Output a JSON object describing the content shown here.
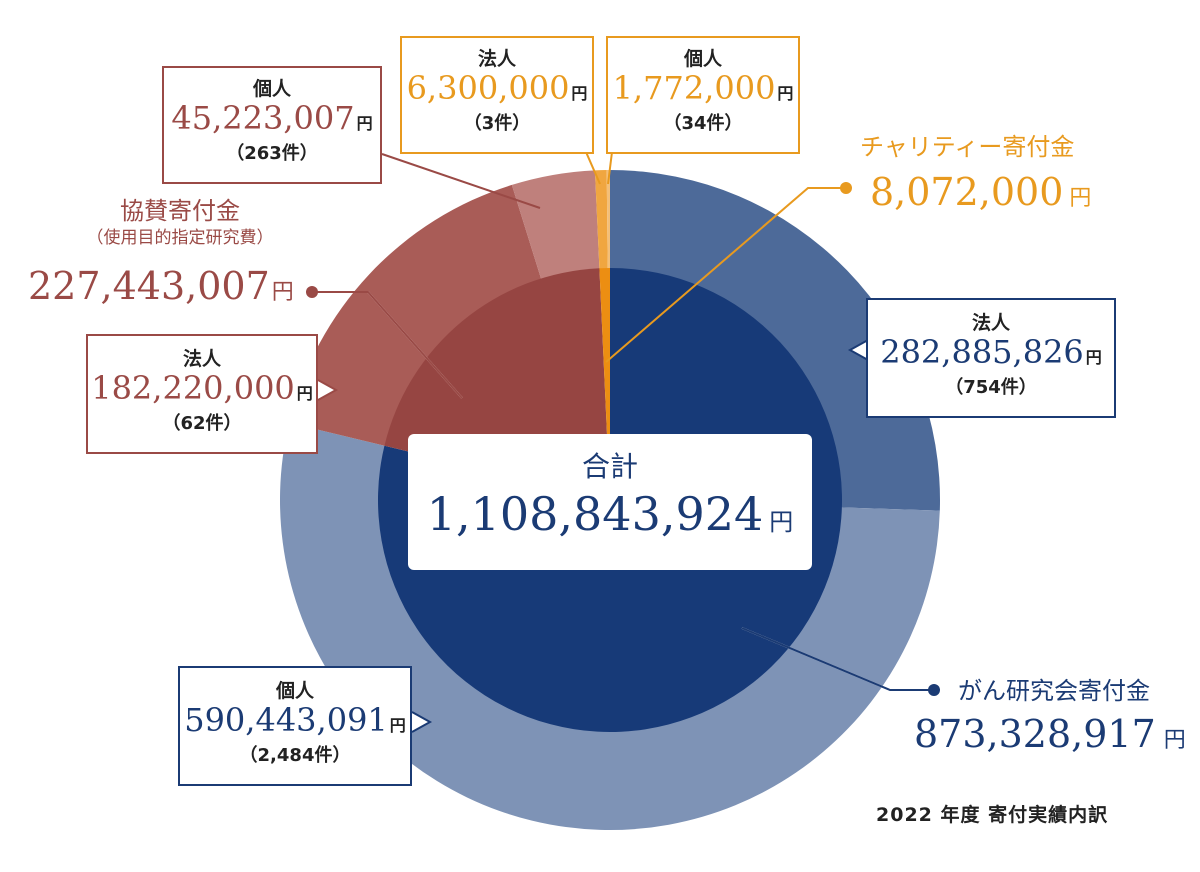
{
  "chart_data": {
    "type": "pie",
    "caption": "2022 年度 寄付実績内訳",
    "total": {
      "label": "合計",
      "value": "1,108,843,924",
      "unit": "円"
    },
    "inner": [
      {
        "name": "がん研究会寄付金",
        "value": 873328917,
        "display": "873,328,917",
        "color": "#173a78"
      },
      {
        "name": "チャリティー寄付金",
        "value": 8072000,
        "display": "8,072,000",
        "color": "#ec8e12"
      },
      {
        "name": "協賛寄付金",
        "sub": "（使用目的指定研究費）",
        "value": 227443007,
        "display": "227,443,007",
        "color": "#964542"
      }
    ],
    "outer": [
      {
        "parent": "がん研究会寄付金",
        "title": "法人",
        "value": 282885826,
        "display": "282,885,826",
        "count": "（754件）",
        "color": "#4d6a99"
      },
      {
        "parent": "がん研究会寄付金",
        "title": "個人",
        "value": 590443091,
        "display": "590,443,091",
        "count": "（2,484件）",
        "color": "#7e93b6"
      },
      {
        "parent": "協賛寄付金",
        "title": "法人",
        "value": 182220000,
        "display": "182,220,000",
        "count": "（62件）",
        "color": "#a95c57"
      },
      {
        "parent": "協賛寄付金",
        "title": "個人",
        "value": 45223007,
        "display": "45,223,007",
        "count": "（263件）",
        "color": "#bf807c"
      },
      {
        "parent": "チャリティー寄付金",
        "title": "法人",
        "value": 6300000,
        "display": "6,300,000",
        "count": "（3件）",
        "color": "#f0a640"
      },
      {
        "parent": "チャリティー寄付金",
        "title": "個人",
        "value": 1772000,
        "display": "1,772,000",
        "count": "（34件）",
        "color": "#f4bf78"
      }
    ],
    "unit": "円"
  }
}
